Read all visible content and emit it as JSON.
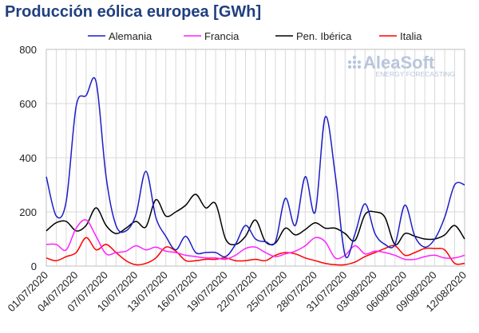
{
  "chart_data": {
    "type": "line",
    "title": "Producción eólica europea [GWh]",
    "ylim": [
      0,
      800
    ],
    "yticks": [
      0,
      200,
      400,
      600,
      800
    ],
    "x_tick_labels": [
      "01/07/2020",
      "04/07/2020",
      "07/07/2020",
      "10/07/2020",
      "13/07/2020",
      "16/07/2020",
      "19/07/2020",
      "22/07/2020",
      "25/07/2020",
      "28/07/2020",
      "31/07/2020",
      "03/08/2020",
      "06/08/2020",
      "09/08/2020",
      "12/08/2020"
    ],
    "grid": "vertical-and-horizontal",
    "legend_position": "top",
    "watermark": {
      "brand": "AleaSoft",
      "tagline": "ENERGY FORECASTING"
    },
    "x": [
      "01/07",
      "02/07",
      "03/07",
      "04/07",
      "05/07",
      "06/07",
      "07/07",
      "08/07",
      "09/07",
      "10/07",
      "11/07",
      "12/07",
      "13/07",
      "14/07",
      "15/07",
      "16/07",
      "17/07",
      "18/07",
      "19/07",
      "20/07",
      "21/07",
      "22/07",
      "23/07",
      "24/07",
      "25/07",
      "26/07",
      "27/07",
      "28/07",
      "29/07",
      "30/07",
      "31/07",
      "01/08",
      "02/08",
      "03/08",
      "04/08",
      "05/08",
      "06/08",
      "07/08",
      "08/08",
      "09/08",
      "10/08",
      "11/08",
      "12/08"
    ],
    "series": [
      {
        "name": "Alemania",
        "color": "#1c1cc8",
        "values": [
          330,
          185,
          240,
          590,
          630,
          680,
          330,
          150,
          130,
          190,
          350,
          180,
          110,
          60,
          110,
          50,
          50,
          50,
          35,
          80,
          150,
          100,
          90,
          90,
          250,
          150,
          330,
          200,
          550,
          340,
          40,
          120,
          230,
          120,
          80,
          80,
          225,
          110,
          70,
          100,
          180,
          300,
          300
        ]
      },
      {
        "name": "Francia",
        "color": "#ff20ff",
        "values": [
          80,
          80,
          60,
          140,
          170,
          110,
          45,
          50,
          55,
          75,
          60,
          70,
          55,
          50,
          40,
          35,
          30,
          30,
          25,
          40,
          65,
          70,
          50,
          35,
          45,
          55,
          75,
          105,
          90,
          30,
          40,
          75,
          45,
          55,
          50,
          40,
          25,
          25,
          35,
          40,
          30,
          30,
          40
        ]
      },
      {
        "name": "Pen. Ibérica",
        "color": "#000000",
        "values": [
          130,
          160,
          165,
          130,
          150,
          215,
          150,
          120,
          140,
          165,
          145,
          245,
          185,
          200,
          225,
          265,
          215,
          230,
          100,
          80,
          110,
          170,
          90,
          85,
          140,
          115,
          135,
          160,
          140,
          140,
          120,
          95,
          190,
          200,
          180,
          80,
          120,
          110,
          100,
          100,
          115,
          150,
          100
        ]
      },
      {
        "name": "Italia",
        "color": "#ff0000",
        "values": [
          30,
          20,
          35,
          50,
          105,
          60,
          80,
          50,
          20,
          5,
          10,
          30,
          70,
          55,
          20,
          20,
          25,
          25,
          30,
          20,
          20,
          25,
          20,
          40,
          50,
          45,
          30,
          20,
          10,
          5,
          5,
          15,
          35,
          50,
          65,
          75,
          40,
          50,
          65,
          65,
          60,
          10,
          10
        ]
      }
    ]
  }
}
